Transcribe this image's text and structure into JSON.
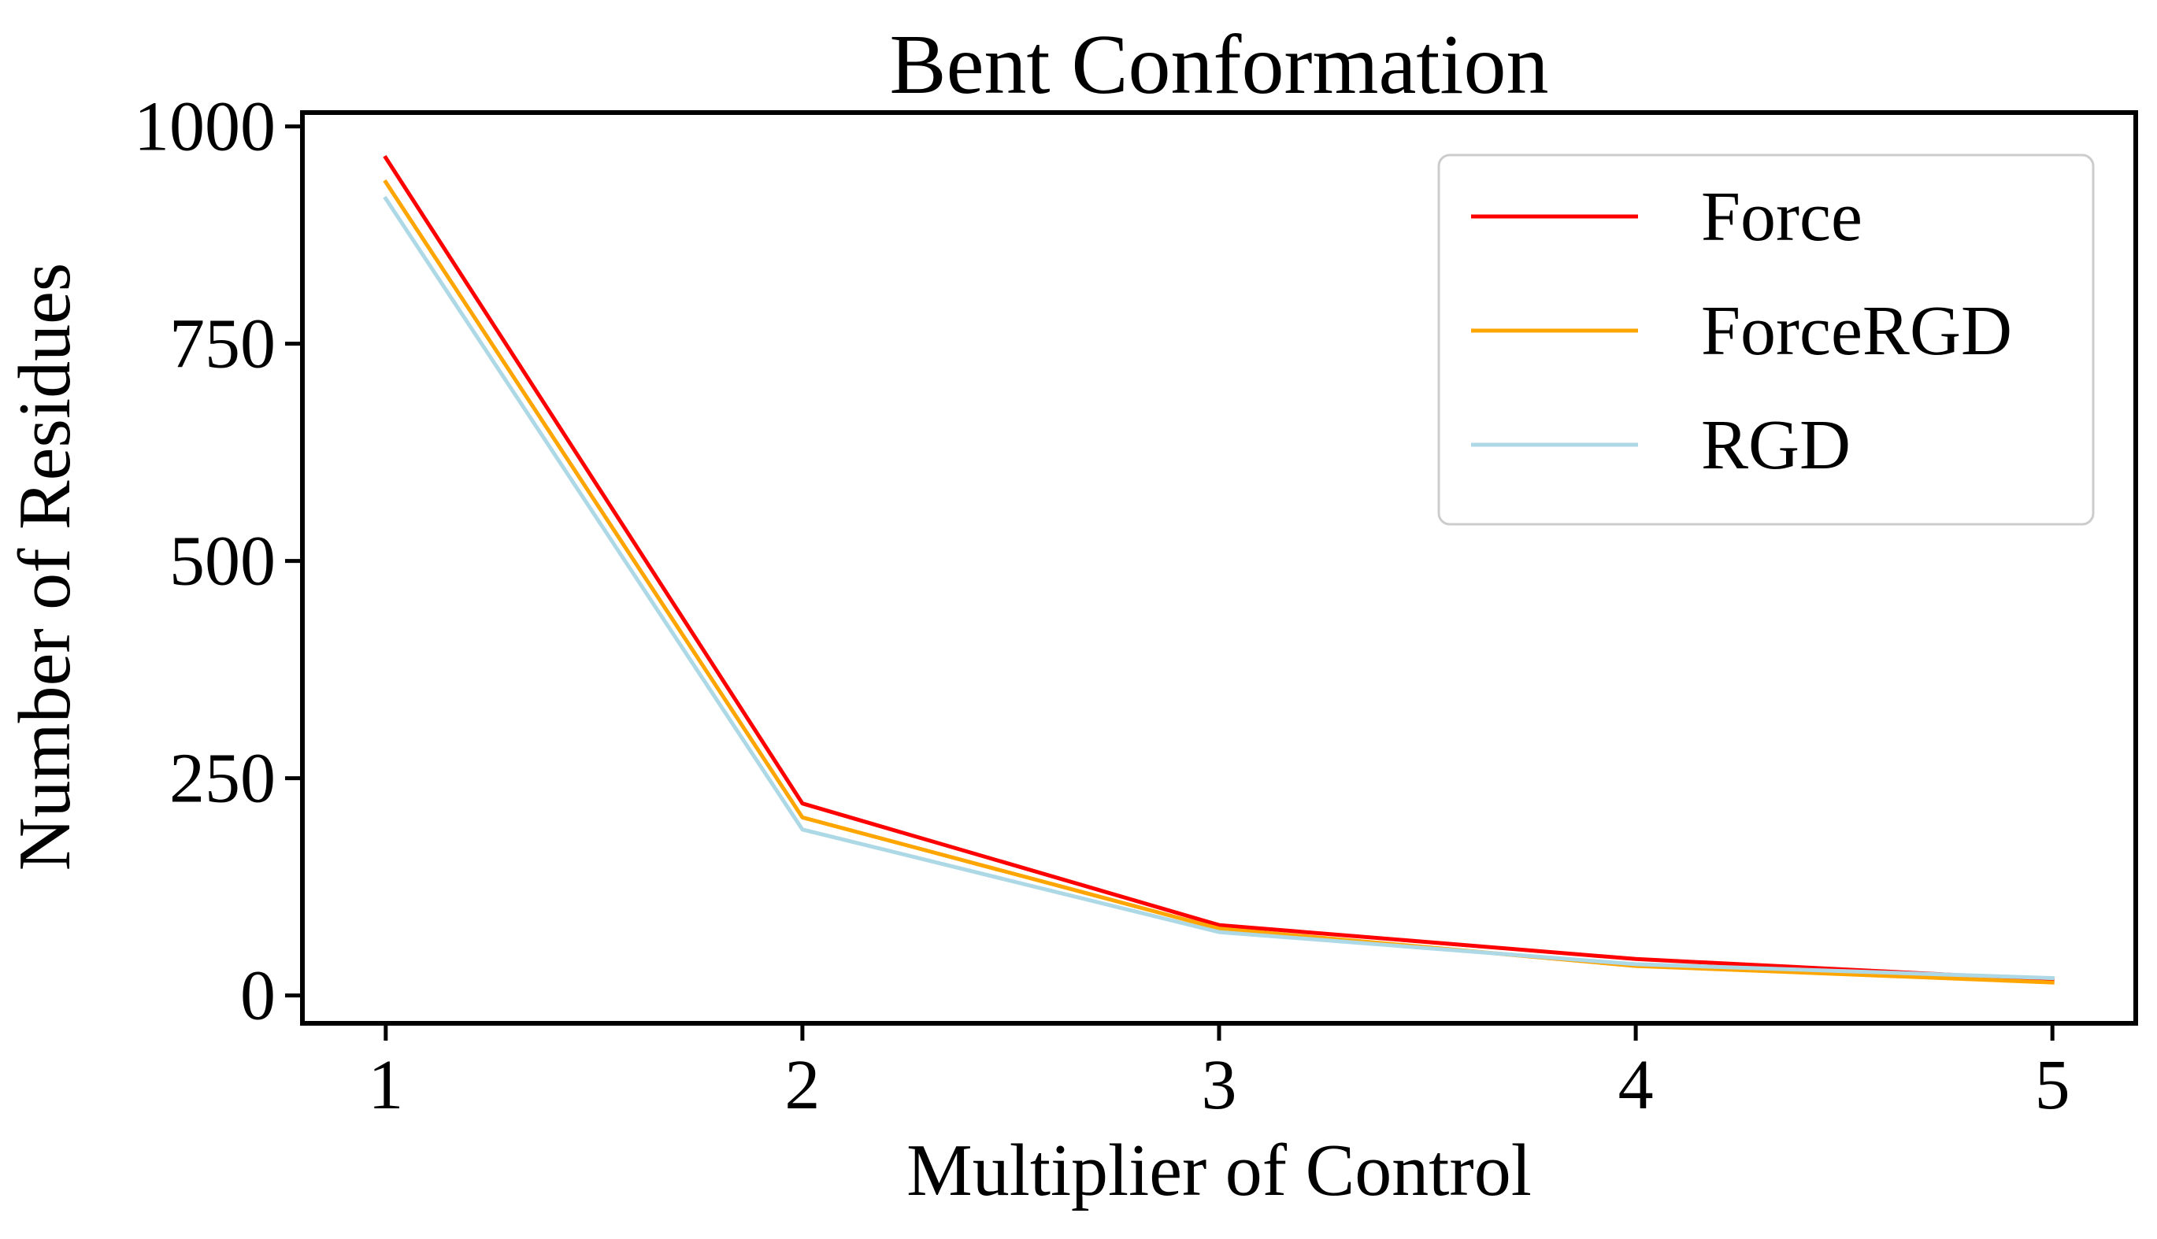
{
  "chart_data": {
    "type": "line",
    "title": "Bent Conformation",
    "xlabel": "Multiplier of Control",
    "ylabel": "Number of Residues",
    "x": [
      1,
      2,
      3,
      4,
      5
    ],
    "xlim": [
      0.8,
      5.2
    ],
    "ylim": [
      -32,
      1016
    ],
    "xticks": [
      "1",
      "2",
      "3",
      "4",
      "5"
    ],
    "yticks": [
      "0",
      "250",
      "500",
      "750",
      "1000"
    ],
    "ytick_values": [
      0,
      250,
      500,
      750,
      1000
    ],
    "grid": false,
    "legend_position": "top-right",
    "series": [
      {
        "name": "Force",
        "color": "#ff0000",
        "values": [
          964,
          221,
          81,
          42,
          18
        ]
      },
      {
        "name": "ForceRGD",
        "color": "#ffa500",
        "values": [
          936,
          205,
          77,
          34,
          15
        ]
      },
      {
        "name": "RGD",
        "color": "#add8e6",
        "values": [
          917,
          191,
          73,
          36,
          20
        ]
      }
    ]
  }
}
